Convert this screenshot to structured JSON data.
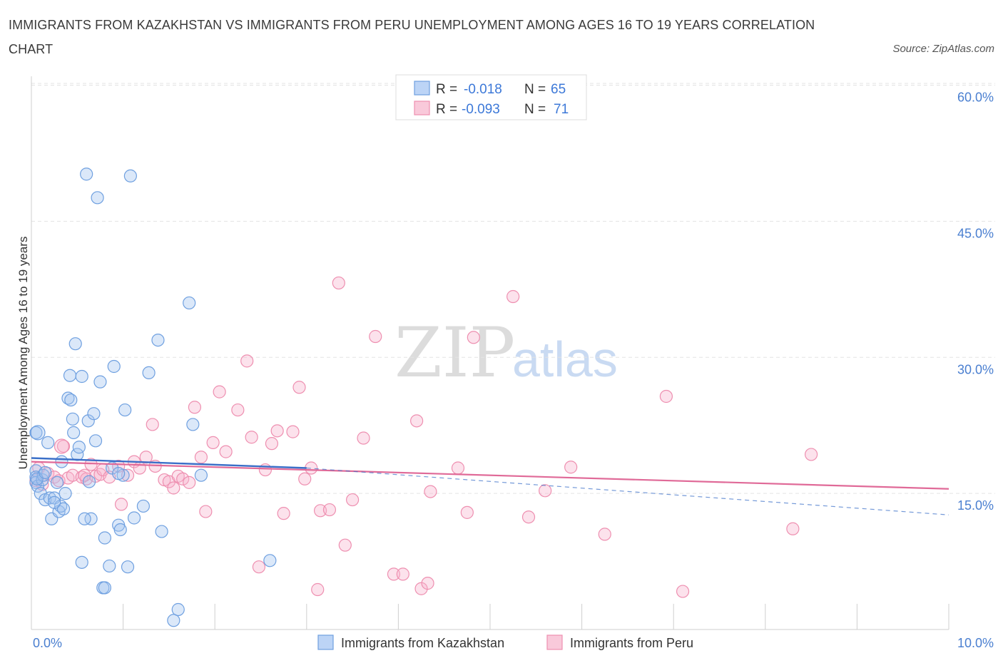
{
  "title": "IMMIGRANTS FROM KAZAKHSTAN VS IMMIGRANTS FROM PERU UNEMPLOYMENT AMONG AGES 16 TO 19 YEARS CORRELATION CHART",
  "source": "Source: ZipAtlas.com",
  "watermark": {
    "zip": "ZIP",
    "atlas": "atlas"
  },
  "colors": {
    "kazakhstan": "#6fa0e0",
    "peru": "#ee8fb0",
    "kaz_line": "#3a6fc8",
    "peru_line": "#e06a98"
  },
  "legend": {
    "r_label": "R =",
    "n_label": "N =",
    "kazakhstan": {
      "r": "-0.018",
      "n": "65"
    },
    "peru": {
      "r": "-0.093",
      "n": "71"
    }
  },
  "chart_data": {
    "type": "scatter",
    "title": "IMMIGRANTS FROM KAZAKHSTAN VS IMMIGRANTS FROM PERU UNEMPLOYMENT AMONG AGES 16 TO 19 YEARS CORRELATION CHART",
    "xlabel": "",
    "ylabel": "Unemployment Among Ages 16 to 19 years",
    "xlim": [
      0,
      10
    ],
    "ylim": [
      0,
      60
    ],
    "x_tick_labels": [
      "0.0%",
      "10.0%"
    ],
    "y_ticks": [
      {
        "value": 15,
        "label": "15.0%"
      },
      {
        "value": 30,
        "label": "30.0%"
      },
      {
        "value": 45,
        "label": "45.0%"
      },
      {
        "value": 60,
        "label": "60.0%"
      }
    ],
    "series": [
      {
        "name": "Immigrants from Kazakhstan",
        "trend": {
          "x": [
            0.0,
            3.0
          ],
          "y": [
            18.9,
            17.8
          ]
        },
        "points": [
          [
            0.05,
            21.7
          ],
          [
            0.05,
            17.5
          ],
          [
            0.05,
            16.8
          ],
          [
            0.05,
            16.2
          ],
          [
            0.07,
            15.8
          ],
          [
            0.1,
            15.0
          ],
          [
            0.12,
            16.5
          ],
          [
            0.13,
            17.0
          ],
          [
            0.15,
            14.3
          ],
          [
            0.18,
            20.6
          ],
          [
            0.2,
            14.5
          ],
          [
            0.22,
            12.2
          ],
          [
            0.25,
            14.5
          ],
          [
            0.28,
            16.2
          ],
          [
            0.3,
            13.0
          ],
          [
            0.32,
            13.6
          ],
          [
            0.33,
            18.5
          ],
          [
            0.35,
            13.3
          ],
          [
            0.37,
            15.0
          ],
          [
            0.4,
            25.5
          ],
          [
            0.42,
            28.0
          ],
          [
            0.43,
            25.3
          ],
          [
            0.45,
            23.2
          ],
          [
            0.46,
            21.7
          ],
          [
            0.48,
            31.5
          ],
          [
            0.5,
            19.3
          ],
          [
            0.52,
            20.1
          ],
          [
            0.55,
            27.9
          ],
          [
            0.55,
            7.4
          ],
          [
            0.6,
            50.2
          ],
          [
            0.62,
            23.0
          ],
          [
            0.63,
            16.3
          ],
          [
            0.65,
            12.2
          ],
          [
            0.68,
            23.8
          ],
          [
            0.7,
            20.8
          ],
          [
            0.72,
            47.6
          ],
          [
            0.75,
            27.3
          ],
          [
            0.78,
            4.6
          ],
          [
            0.8,
            4.6
          ],
          [
            0.8,
            10.1
          ],
          [
            0.85,
            7.0
          ],
          [
            0.88,
            17.8
          ],
          [
            0.9,
            29.0
          ],
          [
            0.95,
            11.5
          ],
          [
            0.97,
            11.0
          ],
          [
            1.0,
            17.0
          ],
          [
            1.02,
            24.2
          ],
          [
            1.05,
            6.9
          ],
          [
            1.08,
            50.0
          ],
          [
            1.12,
            12.3
          ],
          [
            1.22,
            13.6
          ],
          [
            1.28,
            28.3
          ],
          [
            1.38,
            31.9
          ],
          [
            1.42,
            10.8
          ],
          [
            1.55,
            1.0
          ],
          [
            1.6,
            2.2
          ],
          [
            1.72,
            36.0
          ],
          [
            1.76,
            22.6
          ],
          [
            1.85,
            17.0
          ],
          [
            2.6,
            7.6
          ],
          [
            0.06,
            16.6
          ],
          [
            0.15,
            17.3
          ],
          [
            0.25,
            14.0
          ],
          [
            0.95,
            17.2
          ],
          [
            0.58,
            12.2
          ]
        ]
      },
      {
        "name": "Immigrants from Peru",
        "trend": {
          "x": [
            0.0,
            10.0
          ],
          "y": [
            18.5,
            15.5
          ]
        },
        "points": [
          [
            0.05,
            16.4
          ],
          [
            0.08,
            17.8
          ],
          [
            0.12,
            16.0
          ],
          [
            0.18,
            17.2
          ],
          [
            0.25,
            16.8
          ],
          [
            0.3,
            16.4
          ],
          [
            0.35,
            20.2
          ],
          [
            0.4,
            16.7
          ],
          [
            0.45,
            17.0
          ],
          [
            0.55,
            16.8
          ],
          [
            0.6,
            16.6
          ],
          [
            0.65,
            18.2
          ],
          [
            0.7,
            16.9
          ],
          [
            0.75,
            17.1
          ],
          [
            0.78,
            17.6
          ],
          [
            0.85,
            16.8
          ],
          [
            0.95,
            18.0
          ],
          [
            0.98,
            13.8
          ],
          [
            1.05,
            17.0
          ],
          [
            1.12,
            18.5
          ],
          [
            1.18,
            17.8
          ],
          [
            1.25,
            19.0
          ],
          [
            1.32,
            22.6
          ],
          [
            1.35,
            18.0
          ],
          [
            1.45,
            16.5
          ],
          [
            1.5,
            16.3
          ],
          [
            1.55,
            15.6
          ],
          [
            1.6,
            16.9
          ],
          [
            1.65,
            16.6
          ],
          [
            1.72,
            16.2
          ],
          [
            1.78,
            24.5
          ],
          [
            1.85,
            19.0
          ],
          [
            1.9,
            13.0
          ],
          [
            1.98,
            20.6
          ],
          [
            2.05,
            26.2
          ],
          [
            2.12,
            19.6
          ],
          [
            2.25,
            24.2
          ],
          [
            2.35,
            29.6
          ],
          [
            2.4,
            21.2
          ],
          [
            2.48,
            6.9
          ],
          [
            2.55,
            17.6
          ],
          [
            2.62,
            20.5
          ],
          [
            2.68,
            21.9
          ],
          [
            2.75,
            12.8
          ],
          [
            2.85,
            21.8
          ],
          [
            2.92,
            26.7
          ],
          [
            2.98,
            16.6
          ],
          [
            3.05,
            17.8
          ],
          [
            3.12,
            4.4
          ],
          [
            3.15,
            13.1
          ],
          [
            3.25,
            13.2
          ],
          [
            3.35,
            38.2
          ],
          [
            3.42,
            9.3
          ],
          [
            3.5,
            14.3
          ],
          [
            3.62,
            21.1
          ],
          [
            3.75,
            32.3
          ],
          [
            3.95,
            6.1
          ],
          [
            4.05,
            6.1
          ],
          [
            4.2,
            23.0
          ],
          [
            4.25,
            4.5
          ],
          [
            4.32,
            5.1
          ],
          [
            4.65,
            17.8
          ],
          [
            4.75,
            12.9
          ],
          [
            4.82,
            32.2
          ],
          [
            5.25,
            36.7
          ],
          [
            5.42,
            12.4
          ],
          [
            5.6,
            15.3
          ],
          [
            5.88,
            17.9
          ],
          [
            6.25,
            10.5
          ],
          [
            6.92,
            25.7
          ],
          [
            8.5,
            19.3
          ]
        ]
      }
    ],
    "extra_peru_points": [
      [
        7.1,
        4.2
      ],
      [
        8.3,
        11.1
      ],
      [
        0.58,
        17.0
      ],
      [
        4.35,
        15.2
      ]
    ]
  },
  "bottom_legend": {
    "kazakhstan": "Immigrants from Kazakhstan",
    "peru": "Immigrants from Peru"
  }
}
